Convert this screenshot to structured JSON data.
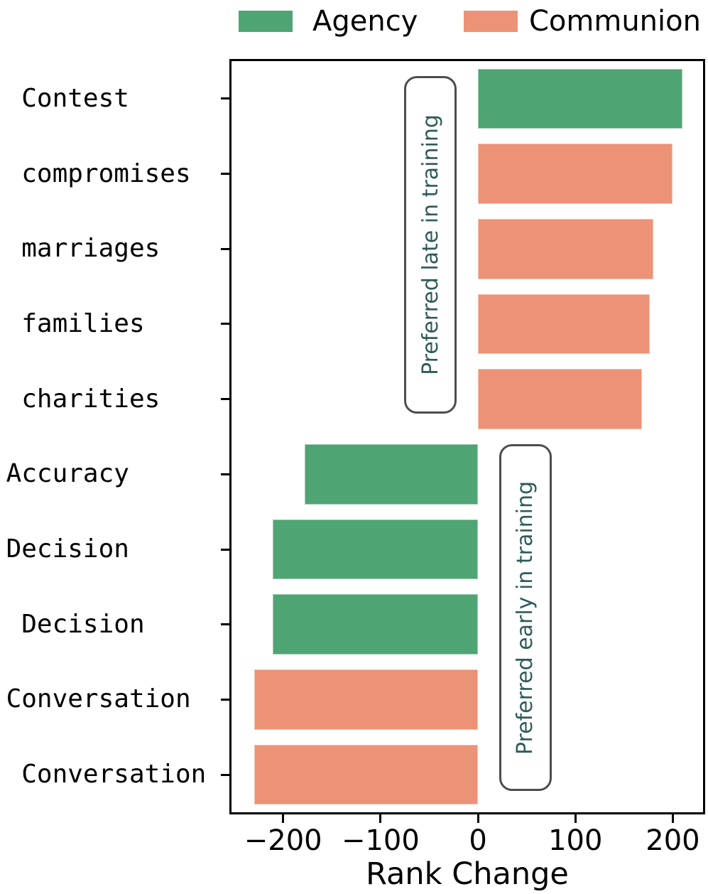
{
  "legend": [
    {
      "label": "Agency",
      "color": "#4FA473"
    },
    {
      "label": "Communion",
      "color": "#EC9277"
    }
  ],
  "chart_data": {
    "type": "bar",
    "orientation": "horizontal",
    "title": "",
    "xlabel": "Rank Change",
    "ylabel": "",
    "xlim": [
      -253,
      231
    ],
    "x_ticks": [
      -200,
      -100,
      0,
      100,
      200
    ],
    "x_tick_labels": [
      "−200",
      "−100",
      "0",
      "100",
      "200"
    ],
    "grid": false,
    "legend_position": "top-center",
    "series_colors": {
      "Agency": "#4FA473",
      "Communion": "#EC9277"
    },
    "categories": [
      "Contest",
      "compromises",
      "marriages",
      "families",
      "charities",
      "Accuracy",
      "Decision",
      "Decision",
      "Conversation",
      "Conversation"
    ],
    "rows": [
      {
        "label": "Contest",
        "tick_label": "Contest      ",
        "value": 210,
        "group": "Agency"
      },
      {
        "label": "compromises",
        "tick_label": "compromises  ",
        "value": 200,
        "group": "Communion"
      },
      {
        "label": "marriages",
        "tick_label": "marriages    ",
        "value": 180,
        "group": "Communion"
      },
      {
        "label": "families",
        "tick_label": "families     ",
        "value": 176,
        "group": "Communion"
      },
      {
        "label": "charities",
        "tick_label": "charities    ",
        "value": 168,
        "group": "Communion"
      },
      {
        "label": "Accuracy",
        "tick_label": "Accuracy      ",
        "value": -178,
        "group": "Agency"
      },
      {
        "label": "Decision",
        "tick_label": "Decision      ",
        "value": -211,
        "group": "Agency"
      },
      {
        "label": "Decision",
        "tick_label": "Decision     ",
        "value": -211,
        "group": "Agency"
      },
      {
        "label": "Conversation",
        "tick_label": "Conversation  ",
        "value": -230,
        "group": "Communion"
      },
      {
        "label": "Conversation",
        "tick_label": "Conversation ",
        "value": -230,
        "group": "Communion"
      }
    ],
    "annotations": [
      {
        "text": "Preferred late in training",
        "x": -49,
        "row_span": [
          0,
          4
        ]
      },
      {
        "text": "Preferred early in training",
        "x": 49,
        "row_span": [
          5,
          9
        ]
      }
    ]
  }
}
